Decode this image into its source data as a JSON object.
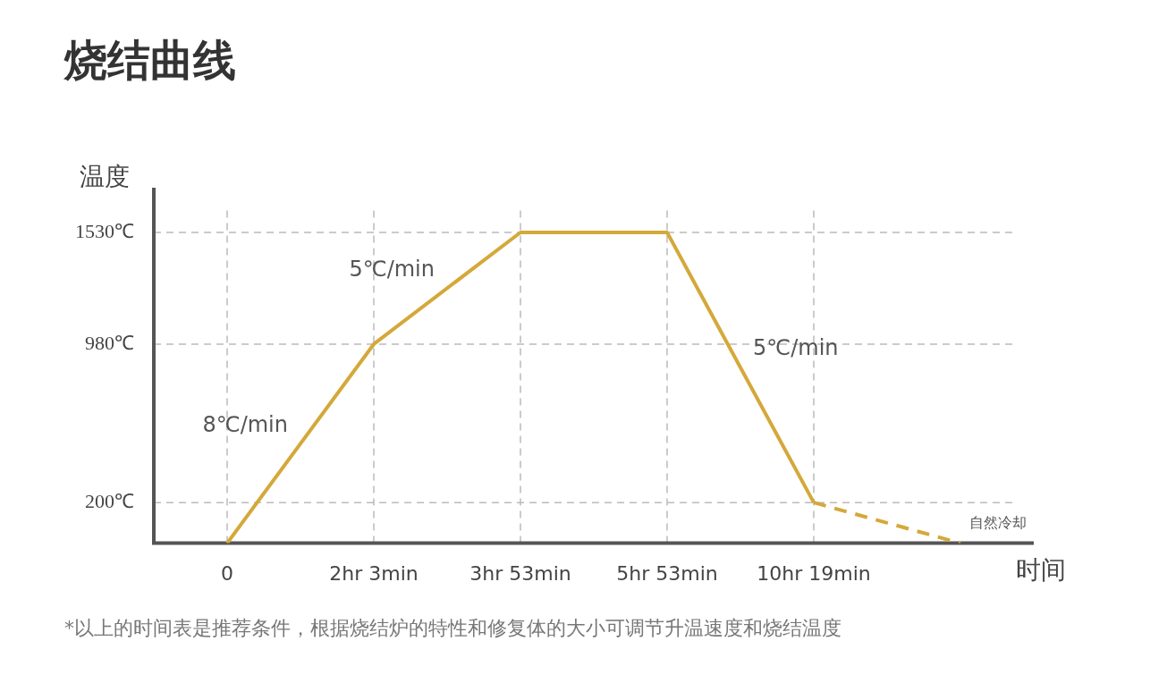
{
  "chart_data": {
    "type": "line",
    "title": "烧结曲线",
    "xlabel": "时间",
    "ylabel": "温度",
    "categories": [
      "0",
      "2hr 3min",
      "3hr 53min",
      "5hr 53min",
      "10hr 19min",
      null
    ],
    "ylim": [
      0,
      1750
    ],
    "yticks": [
      {
        "value": 200,
        "label": "200℃"
      },
      {
        "value": 980,
        "label": "980℃"
      },
      {
        "value": 1530,
        "label": "1530℃"
      }
    ],
    "grid": true,
    "marker": "none",
    "series": [
      {
        "color": "#d4a83a",
        "line_style": "solid",
        "values": [
          0,
          980,
          1530,
          1530,
          200,
          null
        ]
      },
      {
        "color": "#d4a83a",
        "line_style": "dashed",
        "values": [
          null,
          null,
          null,
          null,
          200,
          0
        ]
      }
    ],
    "annotations": [
      "8℃/min",
      "5℃/min",
      "5℃/min",
      "自然冷却",
      "*以上的时间表是推荐条件，根据烧结炉的特性和修复体的大小可调节升温速度和烧结温度"
    ]
  }
}
